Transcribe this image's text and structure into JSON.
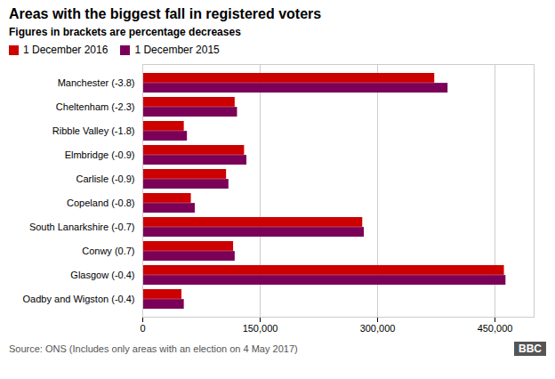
{
  "chart_data": {
    "type": "bar",
    "orientation": "horizontal",
    "title": "Areas with the biggest fall in registered voters",
    "subtitle": "Figures in brackets are percentage decreases",
    "caption": "Source: ONS (Includes only areas with an election on 4 May 2017)",
    "annotations": [
      "BBC"
    ],
    "categories": [
      "Manchester (-3.8)",
      "Cheltenham (-2.3)",
      "Ribble Valley (-1.8)",
      "Elmbridge (-0.9)",
      "Carlisle (-0.9)",
      "Copeland (-0.8)",
      "South Lanarkshire (-0.7)",
      "Conwy (0.7)",
      "Glasgow (-0.4)",
      "Oadby and Wigston (-0.4)"
    ],
    "series": [
      {
        "name": "1 December 2016",
        "color": "#cc0000",
        "values": [
          373000,
          118000,
          53000,
          130000,
          107000,
          62000,
          281000,
          116000,
          462000,
          50000
        ]
      },
      {
        "name": "1 December 2015",
        "color": "#7b0057",
        "values": [
          390000,
          121000,
          57000,
          133000,
          110000,
          67000,
          283000,
          118000,
          464000,
          53000
        ]
      }
    ],
    "xlim": [
      0,
      500000
    ],
    "xticks": [
      0,
      {
        "value": 150000,
        "label": "150,000"
      },
      {
        "value": 300000,
        "label": "300,000"
      },
      {
        "value": 450000,
        "label": "450,000"
      }
    ],
    "grid": true,
    "legend": "upper left"
  }
}
